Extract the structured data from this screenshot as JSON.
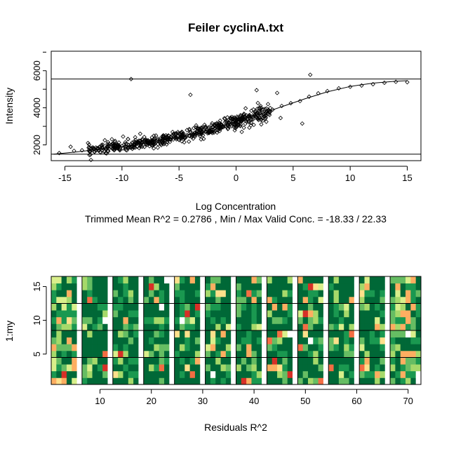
{
  "chart_data": [
    {
      "type": "scatter",
      "title": "Feiler cyclinA.txt",
      "xlabel": "Log Concentration",
      "subtitle": "Trimmed Mean R^2 = 0.2786 , Min / Max Valid Conc. = -18.33 / 22.33",
      "ylabel": "Intensity",
      "xlim": [
        -16.2,
        16.2
      ],
      "ylim": [
        1150,
        7050
      ],
      "xticks": [
        -15,
        -10,
        -5,
        0,
        5,
        10,
        15
      ],
      "yticks": [
        2000,
        4000,
        6000
      ],
      "hlines": [
        1500,
        5550
      ],
      "fit_curve": {
        "x": [
          -16,
          -14,
          -12,
          -10,
          -8,
          -6,
          -4,
          -2,
          0,
          2,
          4,
          6,
          8,
          10,
          12,
          14,
          15
        ],
        "y": [
          1500,
          1620,
          1760,
          1910,
          2090,
          2310,
          2580,
          2890,
          3250,
          3640,
          4060,
          4480,
          4860,
          5150,
          5330,
          5430,
          5460
        ]
      },
      "point_color": "#000000",
      "points": {
        "x": [
          -15.5,
          -14.2,
          -13.5,
          -12.8,
          -12.0,
          -11.2,
          -10.4,
          -9.6,
          -8.8,
          -8.0,
          -7.2,
          -6.4,
          -5.6,
          -4.8,
          -4.0,
          -3.2,
          -2.4,
          -1.6,
          -0.8,
          0.0,
          0.8,
          1.6,
          2.4,
          3.2,
          4.0,
          4.8,
          5.6,
          6.4,
          7.2,
          8.0,
          9.0,
          10.0,
          11.0,
          12.0,
          13.0,
          14.0,
          15.0,
          -9.2,
          -4.0,
          6.5,
          1.8,
          2.2,
          5.8,
          3.9,
          -14.5,
          -11.5,
          -9.9,
          -8.4,
          -6.6,
          -3.5,
          0.5,
          2.8,
          3.6
        ],
        "y": [
          1560,
          1680,
          1710,
          1820,
          1880,
          1930,
          2000,
          2080,
          2150,
          2260,
          2300,
          2420,
          2520,
          2650,
          2720,
          2830,
          2950,
          3050,
          3200,
          3270,
          3420,
          3580,
          3700,
          3900,
          4100,
          4250,
          4360,
          4600,
          4780,
          4900,
          5050,
          5130,
          5200,
          5270,
          5350,
          5400,
          5380,
          5550,
          4700,
          5780,
          4950,
          3350,
          3150,
          3450,
          1900,
          2250,
          2450,
          2600,
          2050,
          3050,
          2700,
          4200,
          4800
        ]
      },
      "density_cloud": {
        "x_from": -13,
        "x_to": 3,
        "count": 560
      }
    },
    {
      "type": "heatmap",
      "xlabel": "Residuals R^2",
      "ylabel": "1:my",
      "xlim": [
        0.5,
        72.5
      ],
      "ylim": [
        0.5,
        16.5
      ],
      "xticks": [
        10,
        20,
        30,
        40,
        50,
        60,
        70
      ],
      "yticks": [
        5,
        10,
        15
      ],
      "nrows": 16,
      "hlines": [
        4.5,
        8.5,
        12.5
      ],
      "vlines": [
        6.5,
        12.5,
        18.5,
        24.5,
        30.5,
        36.5,
        42.5,
        48.5,
        54.5,
        60.5,
        66.5
      ],
      "white_gap_columns": [
        6,
        12,
        18,
        24,
        30,
        36,
        42,
        48,
        54,
        60,
        66
      ],
      "palette": {
        "dark": "#006837",
        "mid": "#1a9850",
        "light": "#66bd63",
        "pale": "#a6d96a",
        "yellow": "#d9ef8b",
        "cream": "#fee08b",
        "orange": "#fdae61",
        "redorange": "#f46d43",
        "red": "#d73027",
        "darkred": "#a50026",
        "white": "#ffffff"
      }
    }
  ]
}
